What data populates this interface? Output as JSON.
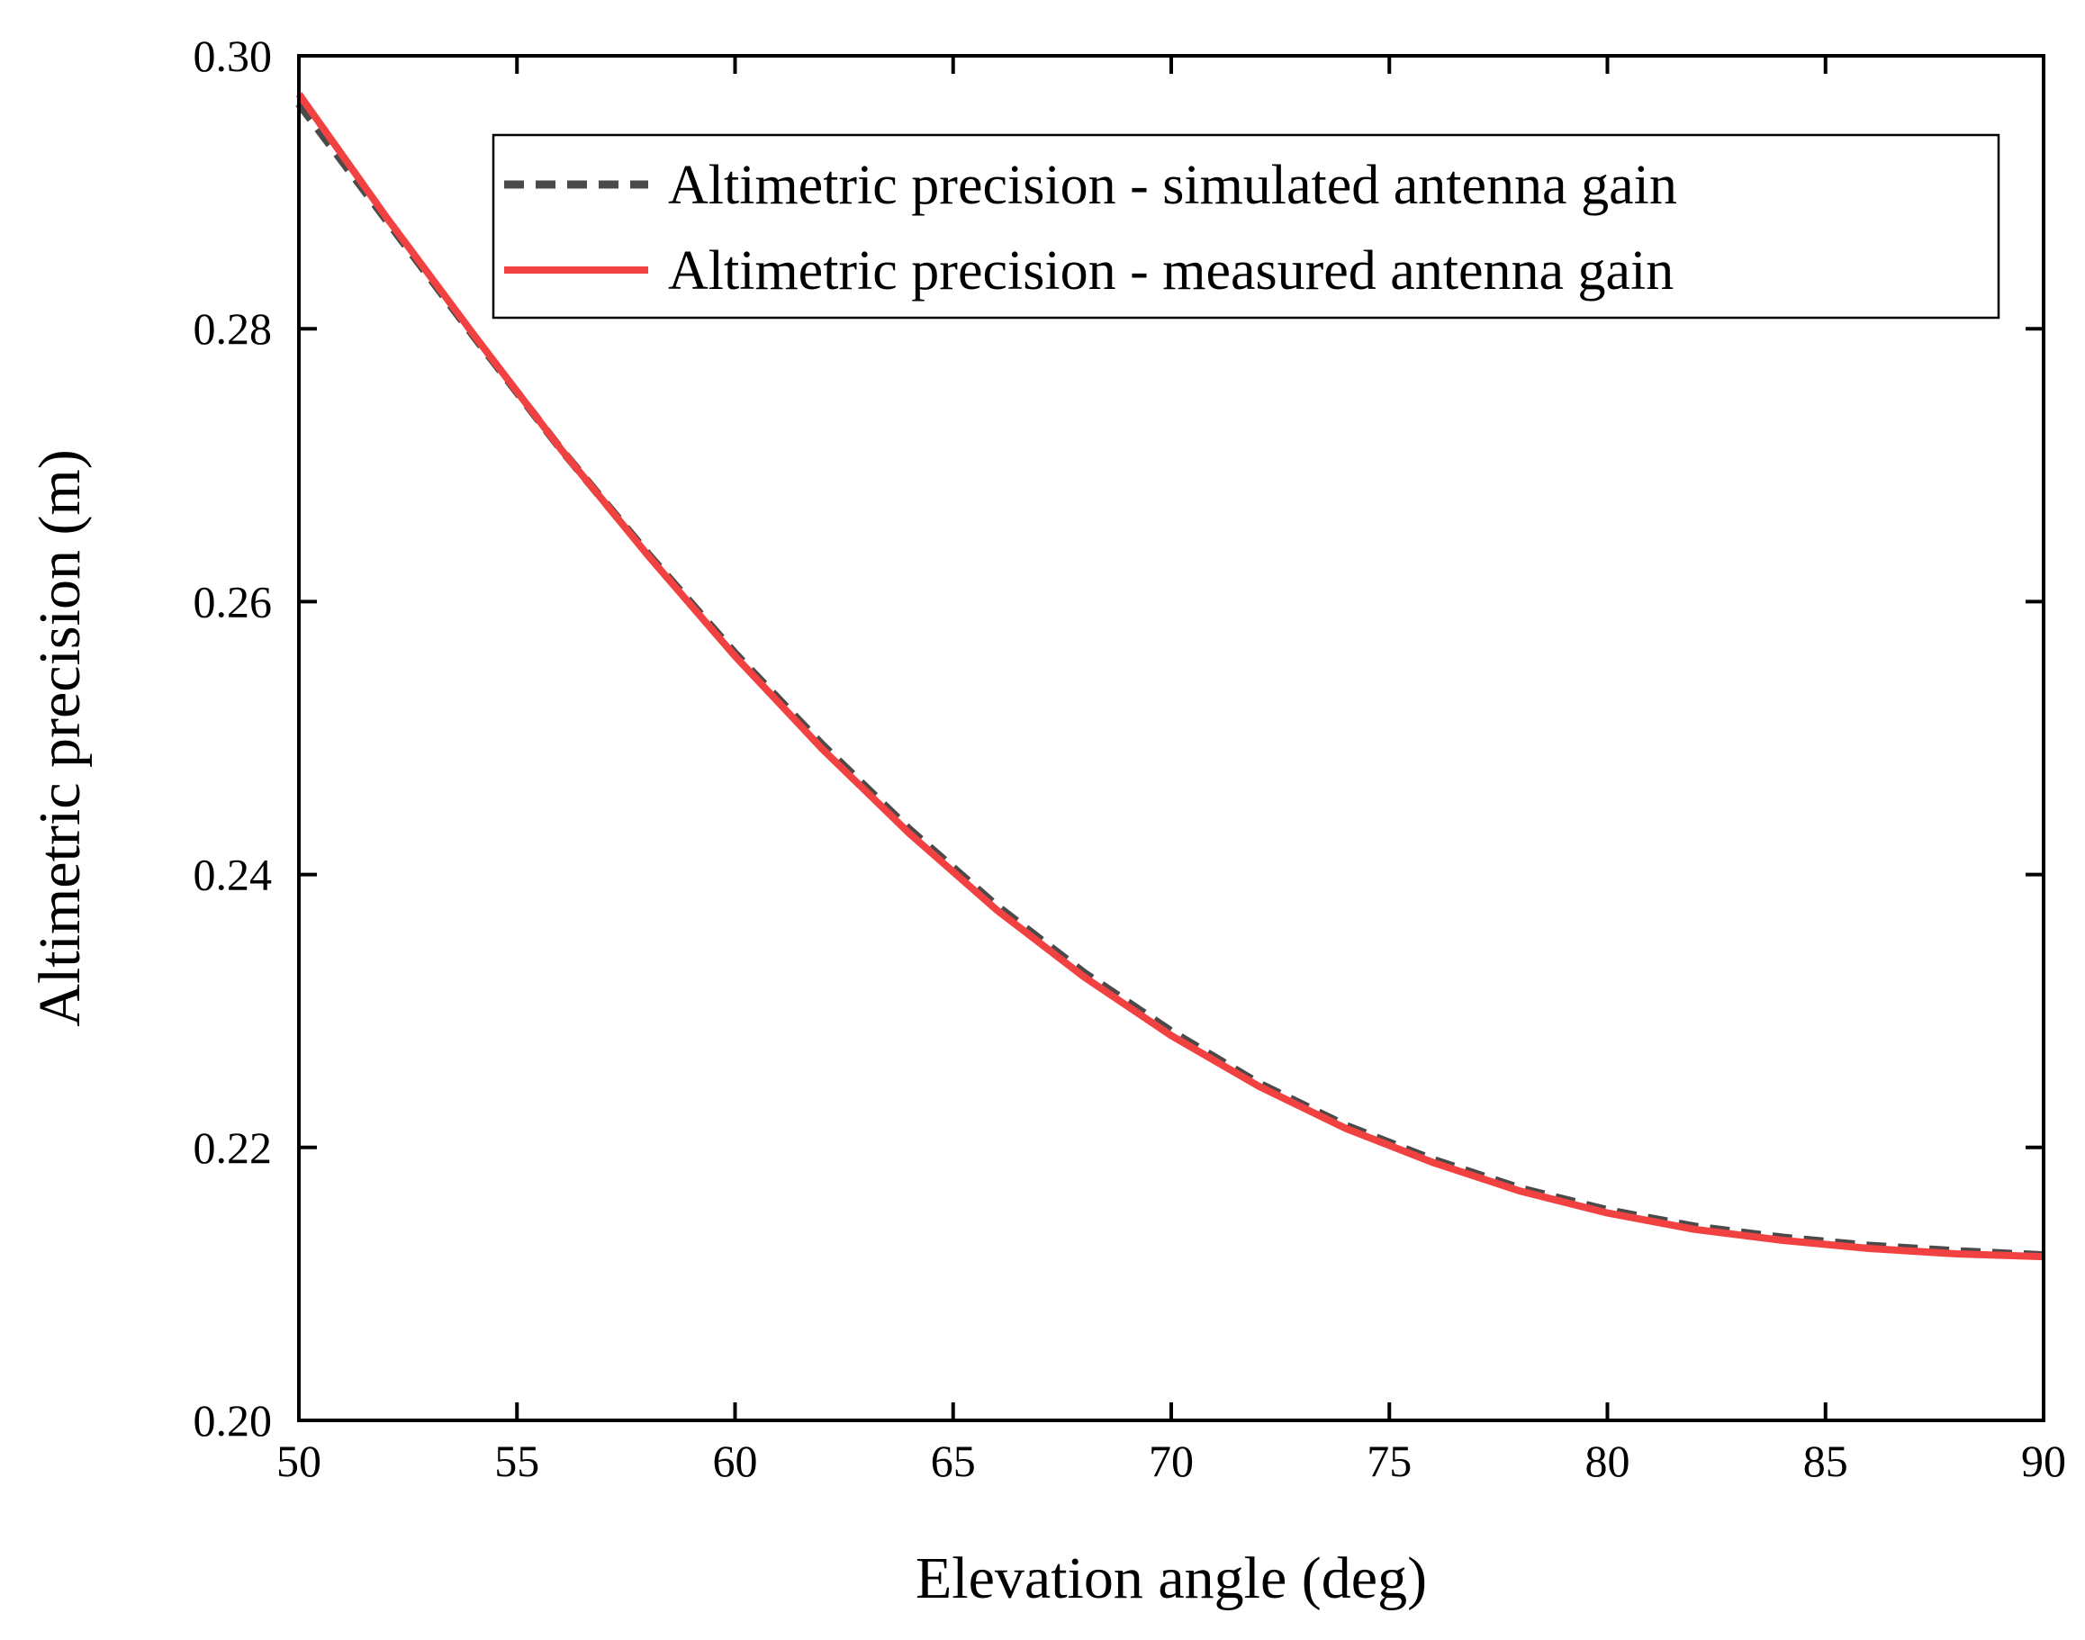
{
  "chart_data": {
    "type": "line",
    "title": "",
    "xlabel": "Elevation angle (deg)",
    "ylabel": "Altimetric precision (m)",
    "xlim": [
      50,
      90
    ],
    "ylim": [
      0.2,
      0.3
    ],
    "xticks": [
      "50",
      "55",
      "60",
      "65",
      "70",
      "75",
      "80",
      "85",
      "90"
    ],
    "yticks": [
      "0.20",
      "0.22",
      "0.24",
      "0.26",
      "0.28",
      "0.30"
    ],
    "grid": false,
    "legend_position": "top-right",
    "x": [
      50,
      52,
      54,
      56,
      58,
      60,
      62,
      64,
      66,
      68,
      70,
      72,
      74,
      76,
      78,
      80,
      82,
      84,
      86,
      88,
      90
    ],
    "series": [
      {
        "name": "Altimetric precision - simulated antenna gain",
        "style": "dashed",
        "color": "#4a4a4a",
        "values": [
          0.2965,
          0.288,
          0.2795,
          0.2712,
          0.2635,
          0.2562,
          0.2495,
          0.2433,
          0.2377,
          0.2328,
          0.2285,
          0.2247,
          0.2216,
          0.2191,
          0.217,
          0.2154,
          0.2142,
          0.2134,
          0.2128,
          0.2124,
          0.2121
        ]
      },
      {
        "name": "Altimetric precision - measured antenna gain",
        "style": "solid",
        "color": "#f24141",
        "values": [
          0.2972,
          0.2882,
          0.2796,
          0.2712,
          0.2634,
          0.256,
          0.2492,
          0.243,
          0.2374,
          0.2325,
          0.2282,
          0.2245,
          0.2214,
          0.2189,
          0.2168,
          0.2152,
          0.214,
          0.2132,
          0.2126,
          0.2122,
          0.212
        ]
      }
    ]
  }
}
